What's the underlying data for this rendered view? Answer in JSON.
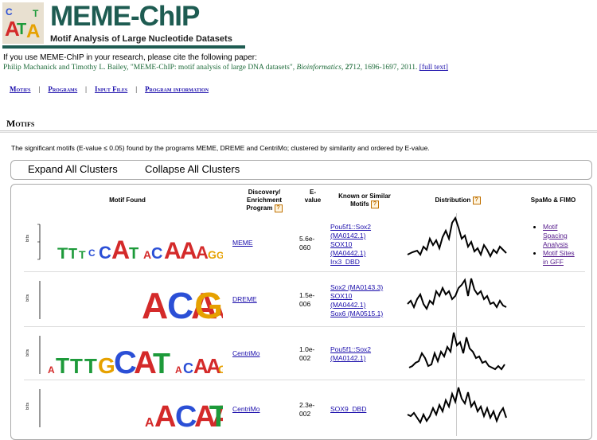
{
  "header": {
    "title": "MEME-ChIP",
    "subtitle": "Motif Analysis of Large Nucleotide Datasets"
  },
  "citation": {
    "intro": "If you use MEME-ChIP in your research, please cite the following paper:",
    "authors": "Philip Machanick and Timothy L. Bailey, \"MEME-ChIP: motif analysis of large DNA datasets\", ",
    "journal": "Bioinformatics",
    "volume": "27",
    "issue": "12",
    "pages": ", 1696-1697, 2011.",
    "full_text": "[full text]"
  },
  "nav": {
    "items": [
      "Motifs",
      "Programs",
      "Input Files",
      "Program information"
    ],
    "separator": "|"
  },
  "section": {
    "title": "Motifs",
    "description": "The significant motifs (E-value ≤ 0.05) found by the programs MEME, DREME and CentriMo; clustered by similarity and ordered by E-value."
  },
  "clusters": {
    "expand_label": "Expand All Clusters",
    "collapse_label": "Collapse All Clusters"
  },
  "table": {
    "headers": {
      "motif": "Motif Found",
      "program_line1": "Discovery/",
      "program_line2": "Enrichment",
      "program_line3": "Program",
      "evalue_line1": "E-",
      "evalue_line2": "value",
      "known_line1": "Known or Similar",
      "known_line2": "Motifs",
      "distribution": "Distribution",
      "spamo": "SpaMo & FIMO",
      "help": "?"
    },
    "axis_label": "bits",
    "rows": [
      {
        "program": "MEME",
        "evalue_line1": "5.6e-",
        "evalue_line2": "060",
        "known": [
          "Pou5f1::Sox2",
          "(MA0142.1)",
          "SOX10",
          "(MA0442.1)",
          "Irx3_DBD"
        ]
      },
      {
        "program": "DREME",
        "evalue_line1": "1.5e-",
        "evalue_line2": "006",
        "known": [
          "Sox2 (MA0143.3)",
          "SOX10",
          "(MA0442.1)",
          "Sox6 (MA0515.1)"
        ]
      },
      {
        "program": "CentriMo",
        "evalue_line1": "1.0e-",
        "evalue_line2": "002",
        "known": [
          "Pou5f1::Sox2",
          "(MA0142.1)"
        ]
      },
      {
        "program": "CentriMo",
        "evalue_line1": "2.3e-",
        "evalue_line2": "002",
        "known": [
          "SOX9_DBD"
        ]
      }
    ],
    "spamo_links": [
      "Motif",
      "Spacing",
      "Analysis",
      "Motif Sites",
      "in GFF"
    ]
  },
  "colors": {
    "brand": "#1e5c52",
    "A": "#d42a2a",
    "C": "#2b4fd6",
    "G": "#e6a100",
    "T": "#1d9a3a"
  }
}
